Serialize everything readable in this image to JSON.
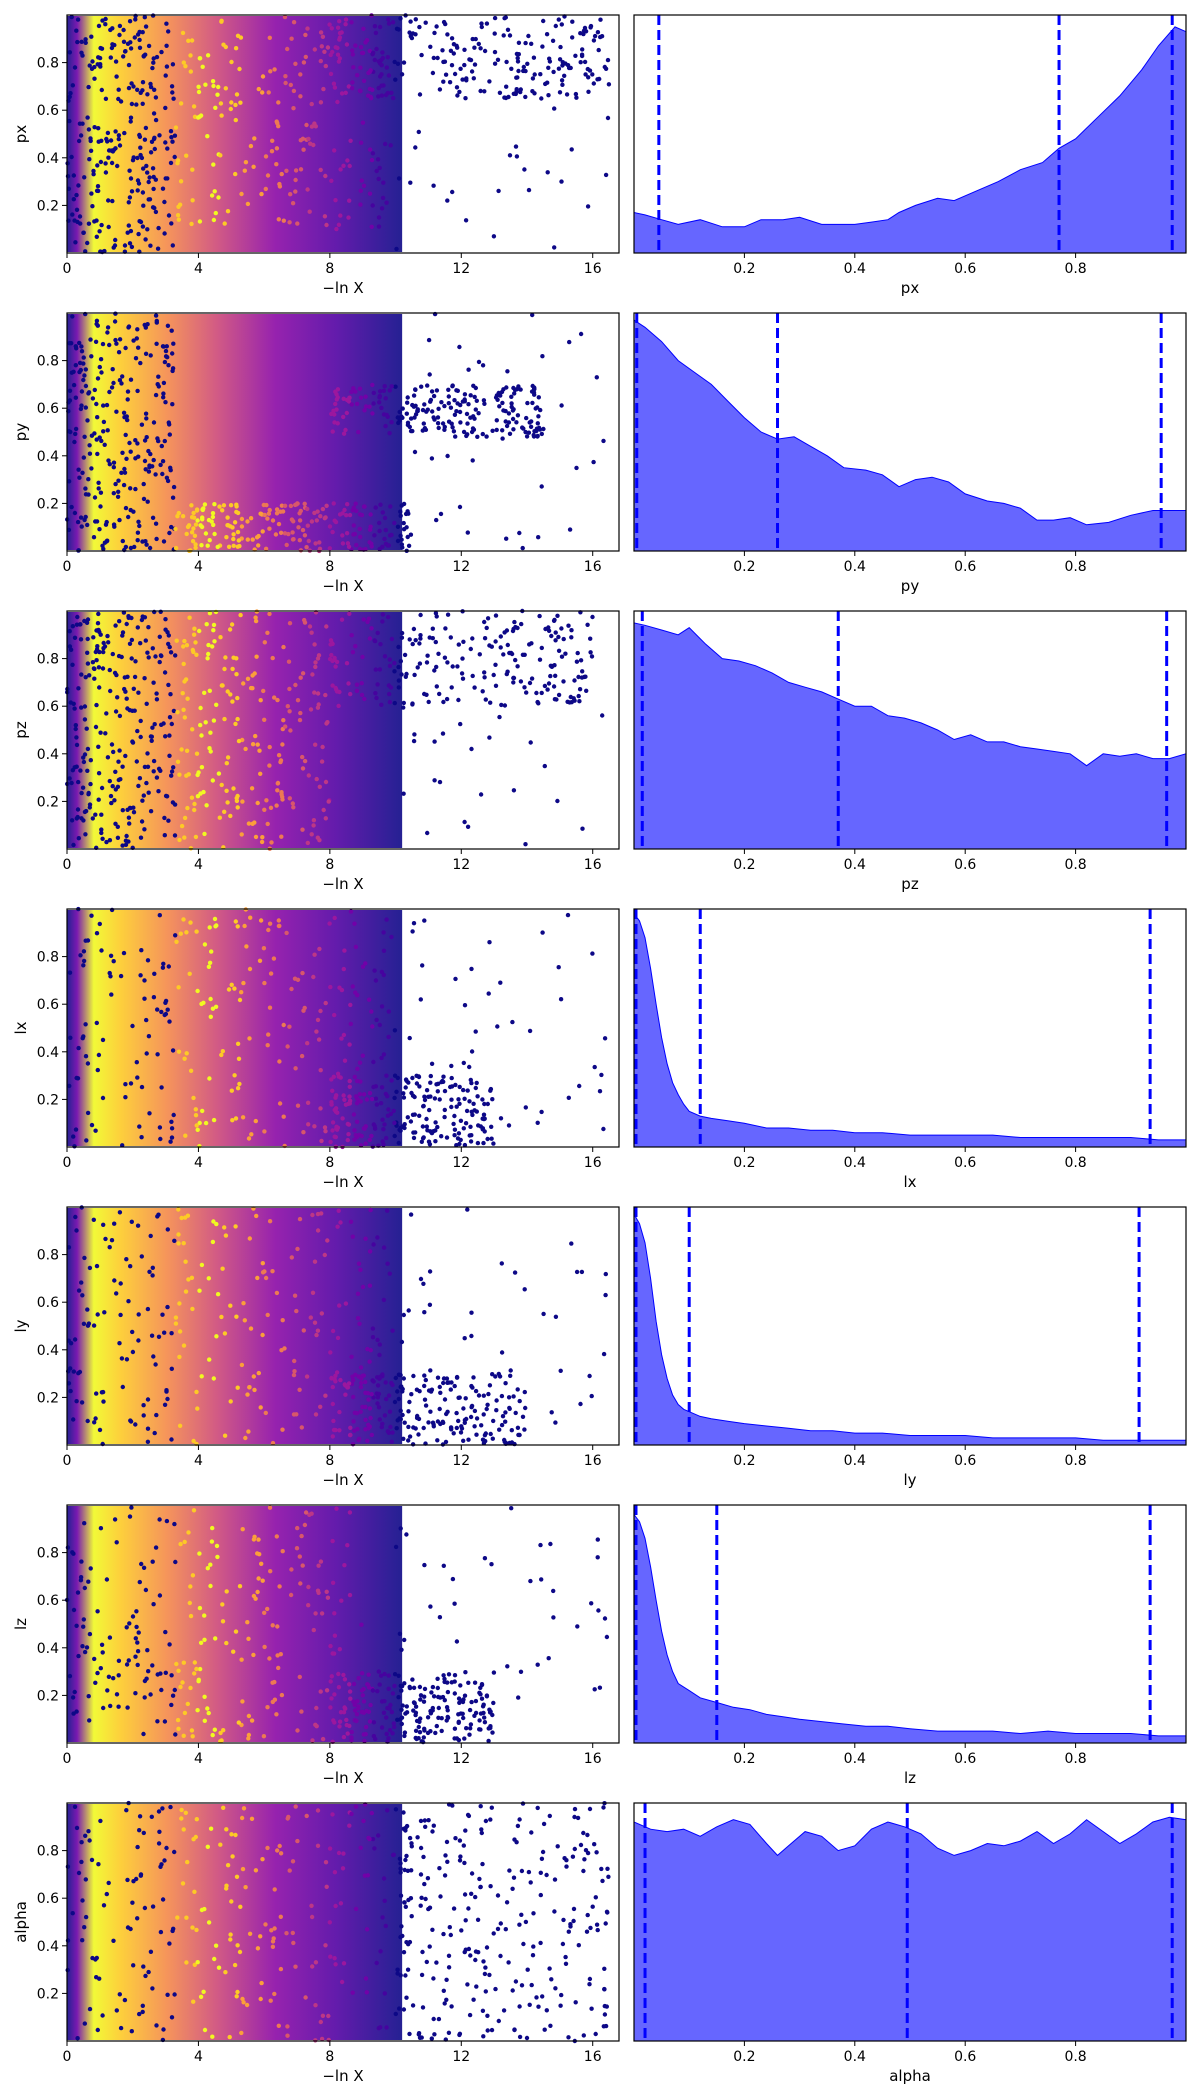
{
  "chart_data": [
    {
      "type": "scatter",
      "parameter": "px",
      "xlabel": "−ln X",
      "ylabel": "px",
      "xlim": [
        0,
        16.8
      ],
      "ylim": [
        0,
        1
      ],
      "x_ticks": [
        "0",
        "4",
        "8",
        "12",
        "16"
      ],
      "y_ticks": [
        "0.2",
        "0.4",
        "0.6",
        "0.8"
      ],
      "colormap": "plasma (by importance weight)",
      "description_regions": [
        {
          "x_from": 0,
          "x_to": 3.3,
          "y_from": 0,
          "y_to": 1
        },
        {
          "x_from": 3.3,
          "x_to": 10,
          "y_from": 0.1,
          "y_to": 1
        },
        {
          "x_from": 8,
          "x_to": 16.5,
          "y_from": 0.65,
          "y_to": 1
        }
      ]
    },
    {
      "type": "scatter",
      "parameter": "py",
      "xlabel": "−ln X",
      "ylabel": "py",
      "xlim": [
        0,
        16.8
      ],
      "ylim": [
        0,
        1
      ],
      "x_ticks": [
        "0",
        "4",
        "8",
        "12",
        "16"
      ],
      "y_ticks": [
        "0.2",
        "0.4",
        "0.6",
        "0.8"
      ],
      "colormap": "plasma (by importance weight)",
      "description_regions": [
        {
          "x_from": 0,
          "x_to": 3.3,
          "y_from": 0,
          "y_to": 1
        },
        {
          "x_from": 3.3,
          "x_to": 10.5,
          "y_from": 0,
          "y_to": 0.2
        },
        {
          "x_from": 8,
          "x_to": 14.5,
          "y_from": 0.48,
          "y_to": 0.7
        }
      ]
    },
    {
      "type": "scatter",
      "parameter": "pz",
      "xlabel": "−ln X",
      "ylabel": "pz",
      "xlim": [
        0,
        16.8
      ],
      "ylim": [
        0,
        1
      ],
      "x_ticks": [
        "0",
        "4",
        "8",
        "12",
        "16"
      ],
      "y_ticks": [
        "0.2",
        "0.4",
        "0.6",
        "0.8"
      ],
      "colormap": "plasma (by importance weight)",
      "description_regions": [
        {
          "x_from": 0,
          "x_to": 3.3,
          "y_from": 0,
          "y_to": 1
        },
        {
          "x_from": 3.3,
          "x_to": 8,
          "y_from": 0,
          "y_to": 1
        },
        {
          "x_from": 8,
          "x_to": 16,
          "y_from": 0.6,
          "y_to": 1
        }
      ]
    },
    {
      "type": "scatter",
      "parameter": "lx",
      "xlabel": "−ln X",
      "ylabel": "lx",
      "xlim": [
        0,
        16.8
      ],
      "ylim": [
        0,
        1
      ],
      "x_ticks": [
        "0",
        "4",
        "8",
        "12",
        "16"
      ],
      "y_ticks": [
        "0.2",
        "0.4",
        "0.6",
        "0.8"
      ],
      "colormap": "plasma (by importance weight)",
      "description_regions": [
        {
          "x_from": 0,
          "x_to": 10,
          "y_from": 0,
          "y_to": 1
        },
        {
          "x_from": 8,
          "x_to": 13,
          "y_from": 0,
          "y_to": 0.3
        }
      ]
    },
    {
      "type": "scatter",
      "parameter": "ly",
      "xlabel": "−ln X",
      "ylabel": "ly",
      "xlim": [
        0,
        16.8
      ],
      "ylim": [
        0,
        1
      ],
      "x_ticks": [
        "0",
        "4",
        "8",
        "12",
        "16"
      ],
      "y_ticks": [
        "0.2",
        "0.4",
        "0.6",
        "0.8"
      ],
      "colormap": "plasma (by importance weight)",
      "description_regions": [
        {
          "x_from": 0,
          "x_to": 10,
          "y_from": 0,
          "y_to": 1
        },
        {
          "x_from": 8,
          "x_to": 14,
          "y_from": 0,
          "y_to": 0.3
        }
      ]
    },
    {
      "type": "scatter",
      "parameter": "lz",
      "xlabel": "−ln X",
      "ylabel": "lz",
      "xlim": [
        0,
        16.8
      ],
      "ylim": [
        0,
        1
      ],
      "x_ticks": [
        "0",
        "4",
        "8",
        "12",
        "16"
      ],
      "y_ticks": [
        "0.2",
        "0.4",
        "0.6",
        "0.8"
      ],
      "colormap": "plasma (by importance weight)",
      "description_regions": [
        {
          "x_from": 0,
          "x_to": 9,
          "y_from": 0,
          "y_to": 1
        },
        {
          "x_from": 8,
          "x_to": 13,
          "y_from": 0,
          "y_to": 0.3
        }
      ]
    },
    {
      "type": "scatter",
      "parameter": "alpha",
      "xlabel": "−ln X",
      "ylabel": "alpha",
      "xlim": [
        0,
        16.8
      ],
      "ylim": [
        0,
        1
      ],
      "x_ticks": [
        "0",
        "4",
        "8",
        "12",
        "16"
      ],
      "y_ticks": [
        "0.2",
        "0.4",
        "0.6",
        "0.8"
      ],
      "colormap": "plasma (by importance weight)",
      "description_regions": [
        {
          "x_from": 0,
          "x_to": 10.5,
          "y_from": 0,
          "y_to": 1
        },
        {
          "x_from": 10,
          "x_to": 16.5,
          "y_from": 0,
          "y_to": 1
        }
      ]
    },
    {
      "type": "area",
      "parameter": "px",
      "xlabel": "px",
      "xlim": [
        0,
        1
      ],
      "x_ticks": [
        "0.2",
        "0.4",
        "0.6",
        "0.8"
      ],
      "fill_color": "#6666ff",
      "line_color": "#0000ff",
      "quantile_lines": [
        0.045,
        0.77,
        0.975
      ],
      "density": [
        [
          0.0,
          0.17
        ],
        [
          0.02,
          0.16
        ],
        [
          0.05,
          0.14
        ],
        [
          0.08,
          0.12
        ],
        [
          0.12,
          0.14
        ],
        [
          0.16,
          0.11
        ],
        [
          0.2,
          0.11
        ],
        [
          0.23,
          0.14
        ],
        [
          0.27,
          0.14
        ],
        [
          0.3,
          0.15
        ],
        [
          0.34,
          0.12
        ],
        [
          0.37,
          0.12
        ],
        [
          0.4,
          0.12
        ],
        [
          0.43,
          0.13
        ],
        [
          0.46,
          0.14
        ],
        [
          0.48,
          0.17
        ],
        [
          0.51,
          0.2
        ],
        [
          0.55,
          0.23
        ],
        [
          0.58,
          0.22
        ],
        [
          0.62,
          0.26
        ],
        [
          0.66,
          0.3
        ],
        [
          0.7,
          0.35
        ],
        [
          0.74,
          0.38
        ],
        [
          0.77,
          0.44
        ],
        [
          0.8,
          0.48
        ],
        [
          0.84,
          0.57
        ],
        [
          0.88,
          0.66
        ],
        [
          0.92,
          0.77
        ],
        [
          0.95,
          0.87
        ],
        [
          0.98,
          0.95
        ],
        [
          1.0,
          0.93
        ]
      ]
    },
    {
      "type": "area",
      "parameter": "py",
      "xlabel": "py",
      "xlim": [
        0,
        1
      ],
      "x_ticks": [
        "0.2",
        "0.4",
        "0.6",
        "0.8"
      ],
      "fill_color": "#6666ff",
      "line_color": "#0000ff",
      "quantile_lines": [
        0.005,
        0.26,
        0.955
      ],
      "density": [
        [
          0.0,
          0.97
        ],
        [
          0.02,
          0.94
        ],
        [
          0.05,
          0.88
        ],
        [
          0.08,
          0.8
        ],
        [
          0.11,
          0.75
        ],
        [
          0.14,
          0.7
        ],
        [
          0.17,
          0.63
        ],
        [
          0.2,
          0.56
        ],
        [
          0.23,
          0.5
        ],
        [
          0.26,
          0.47
        ],
        [
          0.29,
          0.48
        ],
        [
          0.32,
          0.44
        ],
        [
          0.35,
          0.4
        ],
        [
          0.38,
          0.35
        ],
        [
          0.42,
          0.34
        ],
        [
          0.45,
          0.32
        ],
        [
          0.48,
          0.27
        ],
        [
          0.51,
          0.3
        ],
        [
          0.54,
          0.31
        ],
        [
          0.57,
          0.29
        ],
        [
          0.6,
          0.24
        ],
        [
          0.64,
          0.21
        ],
        [
          0.67,
          0.2
        ],
        [
          0.7,
          0.18
        ],
        [
          0.73,
          0.13
        ],
        [
          0.76,
          0.13
        ],
        [
          0.79,
          0.14
        ],
        [
          0.82,
          0.11
        ],
        [
          0.86,
          0.12
        ],
        [
          0.9,
          0.15
        ],
        [
          0.94,
          0.17
        ],
        [
          0.97,
          0.17
        ],
        [
          1.0,
          0.17
        ]
      ]
    },
    {
      "type": "area",
      "parameter": "pz",
      "xlabel": "pz",
      "xlim": [
        0,
        1
      ],
      "x_ticks": [
        "0.2",
        "0.4",
        "0.6",
        "0.8"
      ],
      "fill_color": "#6666ff",
      "line_color": "#0000ff",
      "quantile_lines": [
        0.015,
        0.37,
        0.965
      ],
      "density": [
        [
          0.0,
          0.95
        ],
        [
          0.02,
          0.94
        ],
        [
          0.05,
          0.92
        ],
        [
          0.08,
          0.9
        ],
        [
          0.1,
          0.93
        ],
        [
          0.13,
          0.86
        ],
        [
          0.16,
          0.8
        ],
        [
          0.19,
          0.79
        ],
        [
          0.22,
          0.77
        ],
        [
          0.25,
          0.74
        ],
        [
          0.28,
          0.7
        ],
        [
          0.31,
          0.68
        ],
        [
          0.34,
          0.66
        ],
        [
          0.37,
          0.63
        ],
        [
          0.4,
          0.6
        ],
        [
          0.43,
          0.6
        ],
        [
          0.46,
          0.56
        ],
        [
          0.49,
          0.55
        ],
        [
          0.52,
          0.53
        ],
        [
          0.55,
          0.5
        ],
        [
          0.58,
          0.46
        ],
        [
          0.61,
          0.48
        ],
        [
          0.64,
          0.45
        ],
        [
          0.67,
          0.45
        ],
        [
          0.7,
          0.43
        ],
        [
          0.73,
          0.42
        ],
        [
          0.76,
          0.41
        ],
        [
          0.79,
          0.4
        ],
        [
          0.82,
          0.35
        ],
        [
          0.85,
          0.4
        ],
        [
          0.88,
          0.39
        ],
        [
          0.91,
          0.4
        ],
        [
          0.94,
          0.38
        ],
        [
          0.97,
          0.38
        ],
        [
          1.0,
          0.4
        ]
      ]
    },
    {
      "type": "area",
      "parameter": "lx",
      "xlabel": "lx",
      "xlim": [
        0,
        1
      ],
      "x_ticks": [
        "0.2",
        "0.4",
        "0.6",
        "0.8"
      ],
      "fill_color": "#6666ff",
      "line_color": "#0000ff",
      "quantile_lines": [
        0.0,
        0.12,
        0.935
      ],
      "density": [
        [
          0.0,
          0.98
        ],
        [
          0.01,
          0.95
        ],
        [
          0.02,
          0.88
        ],
        [
          0.03,
          0.75
        ],
        [
          0.04,
          0.6
        ],
        [
          0.05,
          0.46
        ],
        [
          0.06,
          0.35
        ],
        [
          0.07,
          0.27
        ],
        [
          0.08,
          0.22
        ],
        [
          0.09,
          0.18
        ],
        [
          0.1,
          0.15
        ],
        [
          0.12,
          0.13
        ],
        [
          0.14,
          0.12
        ],
        [
          0.17,
          0.11
        ],
        [
          0.2,
          0.1
        ],
        [
          0.24,
          0.08
        ],
        [
          0.28,
          0.08
        ],
        [
          0.32,
          0.07
        ],
        [
          0.36,
          0.07
        ],
        [
          0.4,
          0.06
        ],
        [
          0.45,
          0.06
        ],
        [
          0.5,
          0.05
        ],
        [
          0.55,
          0.05
        ],
        [
          0.6,
          0.05
        ],
        [
          0.65,
          0.05
        ],
        [
          0.7,
          0.04
        ],
        [
          0.75,
          0.04
        ],
        [
          0.8,
          0.04
        ],
        [
          0.85,
          0.04
        ],
        [
          0.9,
          0.04
        ],
        [
          0.95,
          0.03
        ],
        [
          1.0,
          0.03
        ]
      ]
    },
    {
      "type": "area",
      "parameter": "ly",
      "xlabel": "ly",
      "xlim": [
        0,
        1
      ],
      "x_ticks": [
        "0.2",
        "0.4",
        "0.6",
        "0.8"
      ],
      "fill_color": "#6666ff",
      "line_color": "#0000ff",
      "quantile_lines": [
        0.0,
        0.1,
        0.915
      ],
      "density": [
        [
          0.0,
          0.97
        ],
        [
          0.01,
          0.93
        ],
        [
          0.02,
          0.85
        ],
        [
          0.03,
          0.7
        ],
        [
          0.04,
          0.52
        ],
        [
          0.05,
          0.38
        ],
        [
          0.06,
          0.28
        ],
        [
          0.07,
          0.21
        ],
        [
          0.08,
          0.17
        ],
        [
          0.09,
          0.15
        ],
        [
          0.1,
          0.14
        ],
        [
          0.12,
          0.12
        ],
        [
          0.14,
          0.11
        ],
        [
          0.17,
          0.1
        ],
        [
          0.2,
          0.09
        ],
        [
          0.24,
          0.08
        ],
        [
          0.28,
          0.07
        ],
        [
          0.32,
          0.06
        ],
        [
          0.36,
          0.06
        ],
        [
          0.4,
          0.05
        ],
        [
          0.45,
          0.05
        ],
        [
          0.5,
          0.04
        ],
        [
          0.55,
          0.04
        ],
        [
          0.6,
          0.04
        ],
        [
          0.65,
          0.03
        ],
        [
          0.7,
          0.03
        ],
        [
          0.75,
          0.03
        ],
        [
          0.8,
          0.03
        ],
        [
          0.85,
          0.02
        ],
        [
          0.9,
          0.02
        ],
        [
          0.95,
          0.02
        ],
        [
          1.0,
          0.02
        ]
      ]
    },
    {
      "type": "area",
      "parameter": "lz",
      "xlabel": "lz",
      "xlim": [
        0,
        1
      ],
      "x_ticks": [
        "0.2",
        "0.4",
        "0.6",
        "0.8"
      ],
      "fill_color": "#6666ff",
      "line_color": "#0000ff",
      "quantile_lines": [
        0.0,
        0.15,
        0.935
      ],
      "density": [
        [
          0.0,
          0.96
        ],
        [
          0.01,
          0.93
        ],
        [
          0.02,
          0.86
        ],
        [
          0.03,
          0.74
        ],
        [
          0.04,
          0.6
        ],
        [
          0.05,
          0.47
        ],
        [
          0.06,
          0.37
        ],
        [
          0.07,
          0.3
        ],
        [
          0.08,
          0.25
        ],
        [
          0.1,
          0.22
        ],
        [
          0.12,
          0.19
        ],
        [
          0.15,
          0.17
        ],
        [
          0.18,
          0.15
        ],
        [
          0.21,
          0.14
        ],
        [
          0.24,
          0.12
        ],
        [
          0.27,
          0.11
        ],
        [
          0.3,
          0.1
        ],
        [
          0.34,
          0.09
        ],
        [
          0.38,
          0.08
        ],
        [
          0.42,
          0.07
        ],
        [
          0.46,
          0.07
        ],
        [
          0.5,
          0.06
        ],
        [
          0.55,
          0.05
        ],
        [
          0.6,
          0.05
        ],
        [
          0.65,
          0.05
        ],
        [
          0.7,
          0.04
        ],
        [
          0.75,
          0.05
        ],
        [
          0.8,
          0.04
        ],
        [
          0.85,
          0.04
        ],
        [
          0.9,
          0.04
        ],
        [
          0.95,
          0.03
        ],
        [
          1.0,
          0.03
        ]
      ]
    },
    {
      "type": "area",
      "parameter": "alpha",
      "xlabel": "alpha",
      "xlim": [
        0,
        1
      ],
      "x_ticks": [
        "0.2",
        "0.4",
        "0.6",
        "0.8"
      ],
      "fill_color": "#6666ff",
      "line_color": "#0000ff",
      "quantile_lines": [
        0.02,
        0.495,
        0.975
      ],
      "density": [
        [
          0.0,
          0.92
        ],
        [
          0.03,
          0.89
        ],
        [
          0.06,
          0.88
        ],
        [
          0.09,
          0.89
        ],
        [
          0.12,
          0.86
        ],
        [
          0.15,
          0.9
        ],
        [
          0.18,
          0.93
        ],
        [
          0.21,
          0.91
        ],
        [
          0.24,
          0.83
        ],
        [
          0.26,
          0.78
        ],
        [
          0.28,
          0.82
        ],
        [
          0.31,
          0.88
        ],
        [
          0.34,
          0.86
        ],
        [
          0.37,
          0.8
        ],
        [
          0.4,
          0.82
        ],
        [
          0.43,
          0.89
        ],
        [
          0.46,
          0.92
        ],
        [
          0.49,
          0.9
        ],
        [
          0.52,
          0.87
        ],
        [
          0.55,
          0.81
        ],
        [
          0.58,
          0.78
        ],
        [
          0.61,
          0.8
        ],
        [
          0.64,
          0.83
        ],
        [
          0.67,
          0.82
        ],
        [
          0.7,
          0.84
        ],
        [
          0.73,
          0.88
        ],
        [
          0.76,
          0.83
        ],
        [
          0.79,
          0.87
        ],
        [
          0.82,
          0.93
        ],
        [
          0.85,
          0.88
        ],
        [
          0.88,
          0.83
        ],
        [
          0.91,
          0.87
        ],
        [
          0.94,
          0.92
        ],
        [
          0.97,
          0.94
        ],
        [
          1.0,
          0.93
        ]
      ]
    }
  ]
}
